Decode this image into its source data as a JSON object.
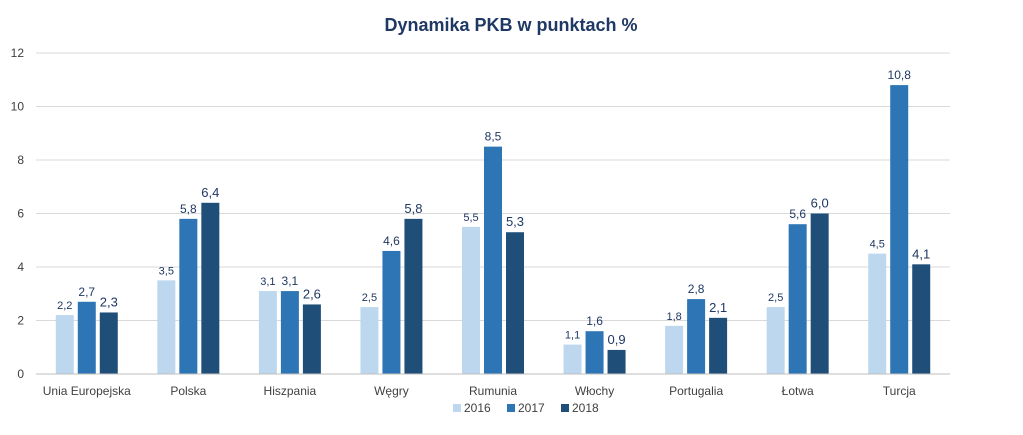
{
  "chart_data": {
    "type": "bar",
    "title": "Dynamika PKB w punktach %",
    "xlabel": "",
    "ylabel": "",
    "ylim": [
      0,
      12
    ],
    "yticks": [
      0,
      2,
      4,
      6,
      8,
      10,
      12
    ],
    "grid": true,
    "legend_position": "bottom",
    "categories": [
      "Unia Europejska",
      "Polska",
      "Hiszpania",
      "Węgry",
      "Rumunia",
      "Włochy",
      "Portugalia",
      "Łotwa",
      "Turcja"
    ],
    "series": [
      {
        "name": "2016",
        "color": "#bdd7ee",
        "values": [
          2.2,
          3.5,
          3.1,
          2.5,
          5.5,
          1.1,
          1.8,
          2.5,
          4.5
        ],
        "labels": [
          "2,2",
          "3,5",
          "3,1",
          "2,5",
          "5,5",
          "1,1",
          "1,8",
          "2,5",
          "4,5"
        ]
      },
      {
        "name": "2017",
        "color": "#2e75b6",
        "values": [
          2.7,
          5.8,
          3.1,
          4.6,
          8.5,
          1.6,
          2.8,
          5.6,
          10.8
        ],
        "labels": [
          "2,7",
          "5,8",
          "3,1",
          "4,6",
          "8,5",
          "1,6",
          "2,8",
          "5,6",
          "10,8"
        ]
      },
      {
        "name": "2018",
        "color": "#1f4e79",
        "values": [
          2.3,
          6.4,
          2.6,
          5.8,
          5.3,
          0.9,
          2.1,
          6.0,
          4.1
        ],
        "labels": [
          "2,3",
          "6,4",
          "2,6",
          "5,8",
          "5,3",
          "0,9",
          "2,1",
          "6,0",
          "4,1"
        ]
      }
    ]
  }
}
